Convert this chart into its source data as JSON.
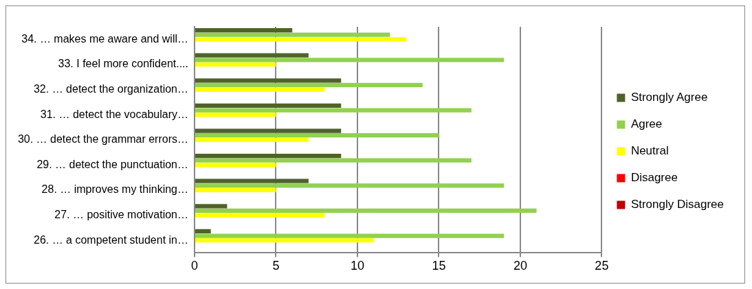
{
  "chart_data": {
    "type": "bar",
    "orientation": "horizontal",
    "categories": [
      "34. … makes me aware and will…",
      "33. I feel more confident....",
      "32. … detect the organization…",
      "31. … detect the vocabulary…",
      "30. … detect the grammar errors…",
      "29. … detect the punctuation…",
      "28. … improves my thinking…",
      "27. … positive motivation…",
      "26. … a competent student in…"
    ],
    "series": [
      {
        "name": "Strongly Agree",
        "color": "#4f6228",
        "values": [
          6,
          7,
          9,
          9,
          9,
          9,
          7,
          2,
          1
        ]
      },
      {
        "name": "Agree",
        "color": "#92d050",
        "values": [
          12,
          19,
          14,
          17,
          15,
          17,
          19,
          21,
          19
        ]
      },
      {
        "name": "Neutral",
        "color": "#ffff00",
        "values": [
          13,
          5,
          8,
          5,
          7,
          5,
          5,
          8,
          11
        ]
      },
      {
        "name": "Disagree",
        "color": "#ff0000",
        "values": [
          0,
          0,
          0,
          0,
          0,
          0,
          0,
          0,
          0
        ]
      },
      {
        "name": "Strongly Disagree",
        "color": "#c00000",
        "values": [
          0,
          0,
          0,
          0,
          0,
          0,
          0,
          0,
          0
        ]
      }
    ],
    "xlim": [
      0,
      25
    ],
    "xticks": [
      0,
      5,
      10,
      15,
      20,
      25
    ],
    "grid": "x",
    "legend": "right"
  }
}
